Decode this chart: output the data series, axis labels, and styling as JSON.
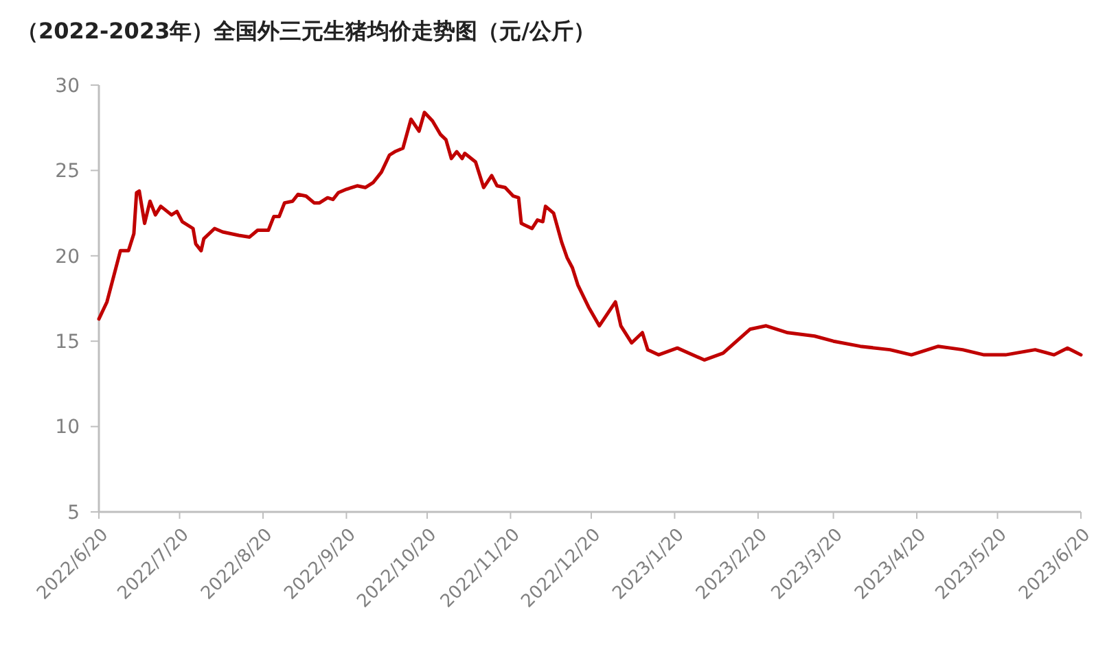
{
  "chart_data": {
    "type": "line",
    "title": "（2022-2023年）全国外三元生猪均价走势图（元/公斤）",
    "x": [
      "2022-06-20",
      "2022-06-23",
      "2022-06-28",
      "2022-07-01",
      "2022-07-03",
      "2022-07-04",
      "2022-07-05",
      "2022-07-07",
      "2022-07-09",
      "2022-07-11",
      "2022-07-13",
      "2022-07-17",
      "2022-07-19",
      "2022-07-21",
      "2022-07-25",
      "2022-07-26",
      "2022-07-28",
      "2022-07-29",
      "2022-08-02",
      "2022-08-05",
      "2022-08-11",
      "2022-08-15",
      "2022-08-18",
      "2022-08-22",
      "2022-08-24",
      "2022-08-26",
      "2022-08-28",
      "2022-08-31",
      "2022-09-02",
      "2022-09-05",
      "2022-09-08",
      "2022-09-10",
      "2022-09-13",
      "2022-09-15",
      "2022-09-17",
      "2022-09-20",
      "2022-09-24",
      "2022-09-27",
      "2022-09-30",
      "2022-10-03",
      "2022-10-06",
      "2022-10-08",
      "2022-10-11",
      "2022-10-14",
      "2022-10-17",
      "2022-10-19",
      "2022-10-22",
      "2022-10-25",
      "2022-10-27",
      "2022-10-29",
      "2022-10-31",
      "2022-11-02",
      "2022-11-03",
      "2022-11-07",
      "2022-11-10",
      "2022-11-13",
      "2022-11-15",
      "2022-11-18",
      "2022-11-21",
      "2022-11-23",
      "2022-11-24",
      "2022-11-28",
      "2022-11-30",
      "2022-12-02",
      "2022-12-03",
      "2022-12-06",
      "2022-12-09",
      "2022-12-11",
      "2022-12-13",
      "2022-12-15",
      "2022-12-19",
      "2022-12-23",
      "2022-12-29",
      "2022-12-31",
      "2023-01-04",
      "2023-01-08",
      "2023-01-10",
      "2023-01-14",
      "2023-01-21",
      "2023-01-31",
      "2023-02-07",
      "2023-02-17",
      "2023-02-23",
      "2023-03-03",
      "2023-03-13",
      "2023-03-20",
      "2023-03-30",
      "2023-04-10",
      "2023-04-18",
      "2023-04-28",
      "2023-05-07",
      "2023-05-15",
      "2023-05-23",
      "2023-06-03",
      "2023-06-10",
      "2023-06-15",
      "2023-06-20"
    ],
    "series": [
      {
        "color": "#c00000",
        "values": [
          16.3,
          17.3,
          20.3,
          20.3,
          21.3,
          23.7,
          23.8,
          21.9,
          23.2,
          22.4,
          22.9,
          22.4,
          22.6,
          22.0,
          21.6,
          20.7,
          20.3,
          21.0,
          21.6,
          21.4,
          21.2,
          21.1,
          21.5,
          21.5,
          22.3,
          22.3,
          23.1,
          23.2,
          23.6,
          23.5,
          23.1,
          23.1,
          23.4,
          23.3,
          23.7,
          23.9,
          24.1,
          24.0,
          24.3,
          24.9,
          25.9,
          26.1,
          26.3,
          28.0,
          27.3,
          28.4,
          27.9,
          27.1,
          26.8,
          25.7,
          26.1,
          25.7,
          26.0,
          25.5,
          24.0,
          24.7,
          24.1,
          24.0,
          23.5,
          23.4,
          21.9,
          21.6,
          22.1,
          22.0,
          22.9,
          22.5,
          20.8,
          19.9,
          19.3,
          18.3,
          17.0,
          15.9,
          17.3,
          15.9,
          14.9,
          15.5,
          14.5,
          14.2,
          14.6,
          13.9,
          14.3,
          15.7,
          15.9,
          15.5,
          15.3,
          15.0,
          14.7,
          14.5,
          14.2,
          14.7,
          14.5,
          14.2,
          14.2,
          14.5,
          14.2,
          14.6,
          14.2
        ]
      }
    ],
    "xlim": [
      "2022-06-20",
      "2023-06-20"
    ],
    "xticks": [
      {
        "value": "2022-06-20",
        "label": "2022/6/20"
      },
      {
        "value": "2022-07-20",
        "label": "2022/7/20"
      },
      {
        "value": "2022-08-20",
        "label": "2022/8/20"
      },
      {
        "value": "2022-09-20",
        "label": "2022/9/20"
      },
      {
        "value": "2022-10-20",
        "label": "2022/10/20"
      },
      {
        "value": "2022-11-20",
        "label": "2022/11/20"
      },
      {
        "value": "2022-12-20",
        "label": "2022/12/20"
      },
      {
        "value": "2023-01-20",
        "label": "2023/1/20"
      },
      {
        "value": "2023-02-20",
        "label": "2023/2/20"
      },
      {
        "value": "2023-03-20",
        "label": "2023/3/20"
      },
      {
        "value": "2023-04-20",
        "label": "2023/4/20"
      },
      {
        "value": "2023-05-20",
        "label": "2023/5/20"
      },
      {
        "value": "2023-06-20",
        "label": "2023/6/20"
      }
    ],
    "ylim": [
      5,
      30
    ],
    "yticks": [
      5,
      10,
      15,
      20,
      25,
      30
    ],
    "grid": false,
    "marker": "none",
    "line_style": "solid"
  }
}
